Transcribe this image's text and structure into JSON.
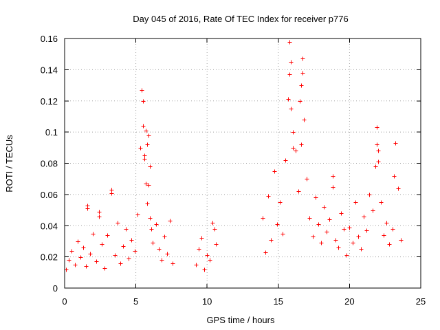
{
  "chart_data": {
    "type": "scatter",
    "title": "Day 045 of 2016, Rate Of TEC Index for receiver p776",
    "xlabel": "GPS time / hours",
    "ylabel": "ROTI / TECUs",
    "xlim": [
      0,
      25
    ],
    "ylim": [
      0,
      0.16
    ],
    "xticks": [
      0,
      5,
      10,
      15,
      20,
      25
    ],
    "yticks": [
      0,
      0.02,
      0.04,
      0.06,
      0.08,
      0.1,
      0.12,
      0.14,
      0.16
    ],
    "xtick_labels": [
      "0",
      "5",
      "10",
      "15",
      "20",
      "25"
    ],
    "ytick_labels": [
      "0",
      "0.02",
      "0.04",
      "0.06",
      "0.08",
      "0.1",
      "0.12",
      "0.14",
      "0.16"
    ],
    "grid": true,
    "marker": "+",
    "color": "#ff0000",
    "data_gaps_hours": [
      [
        7.8,
        9.1
      ],
      [
        10.9,
        13.8
      ]
    ],
    "series": [
      {
        "name": "ROTI",
        "x": [
          0.1,
          0.3,
          0.5,
          0.7,
          0.9,
          1.1,
          1.3,
          1.5,
          1.6,
          1.8,
          2.0,
          2.2,
          2.4,
          2.6,
          2.8,
          3.0,
          3.3,
          3.5,
          3.7,
          3.9,
          4.1,
          4.3,
          4.5,
          4.7,
          4.9,
          5.1,
          5.3,
          5.4,
          5.5,
          5.6,
          5.7,
          5.8,
          5.9,
          6.0,
          6.1,
          6.2,
          6.4,
          6.6,
          6.8,
          7.0,
          7.2,
          7.4,
          7.6,
          9.2,
          9.4,
          9.6,
          9.8,
          10.0,
          10.2,
          10.4,
          10.6,
          13.9,
          14.1,
          14.3,
          14.5,
          14.7,
          14.9,
          15.1,
          15.3,
          15.5,
          15.7,
          15.8,
          15.9,
          16.0,
          16.2,
          16.4,
          16.6,
          16.7,
          16.8,
          17.0,
          17.2,
          17.4,
          17.6,
          17.8,
          18.0,
          18.2,
          18.4,
          18.6,
          18.8,
          19.0,
          19.2,
          19.4,
          19.6,
          19.8,
          20.0,
          20.2,
          20.4,
          20.6,
          20.8,
          21.0,
          21.2,
          21.4,
          21.6,
          21.8,
          21.9,
          22.0,
          22.2,
          22.4,
          22.6,
          22.8,
          23.0,
          23.2,
          23.4,
          23.6,
          5.5,
          5.6,
          5.7,
          5.8,
          5.9,
          6.0,
          15.8,
          15.9,
          16.0,
          16.5,
          16.6,
          16.7,
          21.9,
          22.0,
          23.1,
          3.3,
          1.6,
          2.4,
          18.8,
          10.5
        ],
        "y": [
          0.012,
          0.018,
          0.024,
          0.015,
          0.03,
          0.02,
          0.026,
          0.014,
          0.051,
          0.022,
          0.035,
          0.017,
          0.049,
          0.028,
          0.013,
          0.034,
          0.063,
          0.021,
          0.042,
          0.016,
          0.027,
          0.038,
          0.019,
          0.031,
          0.024,
          0.047,
          0.09,
          0.127,
          0.104,
          0.083,
          0.101,
          0.092,
          0.066,
          0.045,
          0.038,
          0.029,
          0.041,
          0.025,
          0.018,
          0.033,
          0.022,
          0.043,
          0.016,
          0.015,
          0.025,
          0.032,
          0.012,
          0.021,
          0.018,
          0.042,
          0.028,
          0.045,
          0.023,
          0.059,
          0.031,
          0.075,
          0.041,
          0.055,
          0.035,
          0.082,
          0.121,
          0.158,
          0.145,
          0.1,
          0.088,
          0.062,
          0.092,
          0.147,
          0.108,
          0.07,
          0.045,
          0.033,
          0.058,
          0.041,
          0.029,
          0.052,
          0.036,
          0.044,
          0.072,
          0.031,
          0.026,
          0.048,
          0.038,
          0.021,
          0.039,
          0.029,
          0.055,
          0.033,
          0.025,
          0.046,
          0.037,
          0.06,
          0.05,
          0.078,
          0.103,
          0.088,
          0.055,
          0.034,
          0.042,
          0.028,
          0.038,
          0.093,
          0.064,
          0.031,
          0.12,
          0.085,
          0.067,
          0.054,
          0.098,
          0.078,
          0.137,
          0.115,
          0.09,
          0.12,
          0.13,
          0.138,
          0.092,
          0.081,
          0.072,
          0.061,
          0.053,
          0.046,
          0.065,
          0.038
        ]
      }
    ]
  }
}
